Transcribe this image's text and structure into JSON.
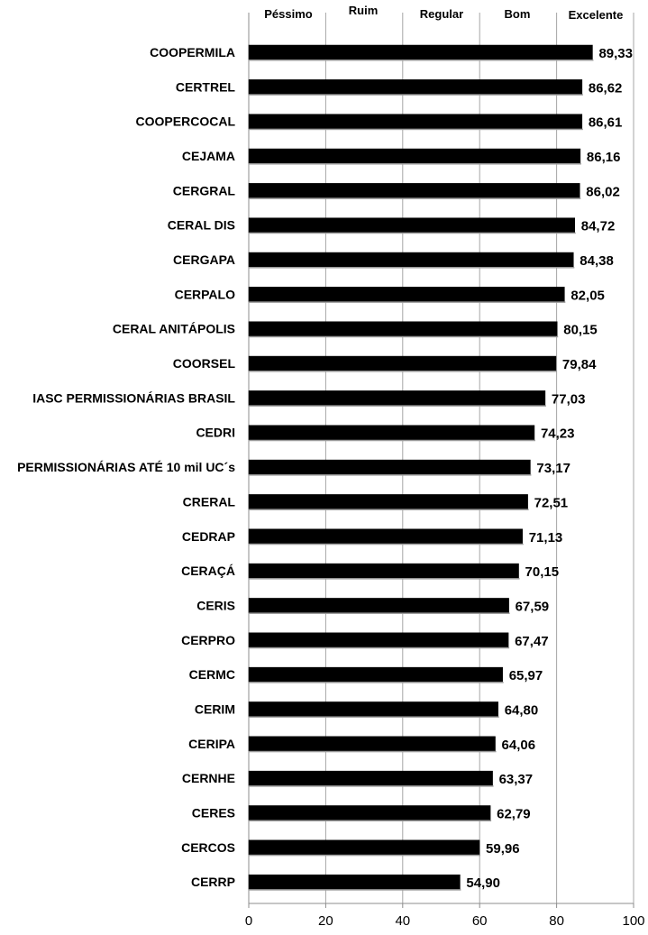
{
  "chart_data": {
    "type": "bar",
    "orientation": "horizontal",
    "categories": [
      "COOPERMILA",
      "CERTREL",
      "COOPERCOCAL",
      "CEJAMA",
      "CERGRAL",
      "CERAL DIS",
      "CERGAPA",
      "CERPALO",
      "CERAL ANITÁPOLIS",
      "COORSEL",
      "IASC PERMISSIONÁRIAS BRASIL",
      "CEDRI",
      "PERMISSIONÁRIAS ATÉ 10 mil UC´s",
      "CRERAL",
      "CEDRAP",
      "CERAÇÁ",
      "CERIS",
      "CERPRO",
      "CERMC",
      "CERIM",
      "CERIPA",
      "CERNHE",
      "CERES",
      "CERCOS",
      "CERRP"
    ],
    "values": [
      89.33,
      86.62,
      86.61,
      86.16,
      86.02,
      84.72,
      84.38,
      82.05,
      80.15,
      79.84,
      77.03,
      74.23,
      73.17,
      72.51,
      71.13,
      70.15,
      67.59,
      67.47,
      65.97,
      64.8,
      64.06,
      63.37,
      62.79,
      59.96,
      54.9
    ],
    "value_labels": [
      "89,33",
      "86,62",
      "86,61",
      "86,16",
      "86,02",
      "84,72",
      "84,38",
      "82,05",
      "80,15",
      "79,84",
      "77,03",
      "74,23",
      "73,17",
      "72,51",
      "71,13",
      "70,15",
      "67,59",
      "67,47",
      "65,97",
      "64,80",
      "64,06",
      "63,37",
      "62,79",
      "59,96",
      "54,90"
    ],
    "xlim": [
      0,
      100
    ],
    "x_ticks": [
      0,
      20,
      40,
      60,
      80,
      100
    ],
    "x_tick_labels": [
      "0",
      "20",
      "40",
      "60",
      "80",
      "100"
    ],
    "rating_bands": [
      "Péssimo",
      "Ruim",
      "Regular",
      "Bom",
      "Excelente"
    ],
    "grid": "vertical",
    "bar_color": "#000000",
    "grid_color": "#a6a6a6",
    "title": "",
    "xlabel": "",
    "ylabel": ""
  }
}
